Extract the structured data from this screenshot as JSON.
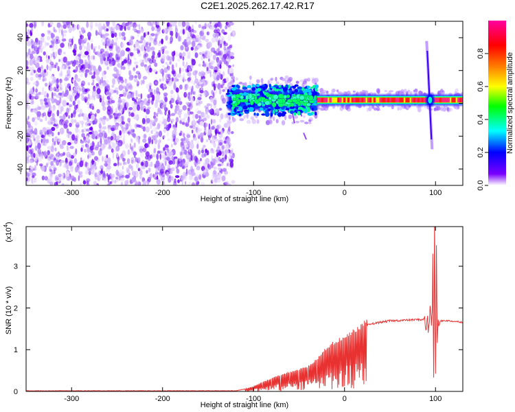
{
  "title": "C2E1.2025.262.17.42.R17",
  "chart_data": [
    {
      "type": "heatmap",
      "name": "spectrogram",
      "xlabel": "Height of straight line (km)",
      "ylabel": "Frequency (Hz)",
      "xlim": [
        -350,
        130
      ],
      "ylim": [
        -50,
        50
      ],
      "xticks": [
        -300,
        -200,
        -100,
        0,
        100
      ],
      "yticks": [
        -40,
        -20,
        0,
        20,
        40
      ],
      "colorbar": {
        "label": "Normalized spectral amplitude",
        "range": [
          0,
          1
        ],
        "ticks": [
          "0.0",
          "0.2",
          "0.4",
          "0.6",
          "0.8"
        ],
        "tick_values": [
          0,
          0.2,
          0.4,
          0.6,
          0.8
        ],
        "colormap": [
          "#ffffff",
          "#7a00ff",
          "#0000ff",
          "#00ffff",
          "#00ff00",
          "#ffff00",
          "#ff7f00",
          "#ff0000",
          "#ff00a0"
        ]
      },
      "regions": [
        {
          "label": "noise",
          "x_range": [
            -350,
            -128
          ],
          "f_range": [
            -50,
            50
          ],
          "amplitude": [
            0.0,
            0.18
          ]
        },
        {
          "label": "signal-turbulent",
          "x_range": [
            -128,
            -30
          ],
          "f_center": 2,
          "f_halfwidth": 6,
          "amplitude": [
            0.3,
            0.5
          ]
        },
        {
          "label": "signal-stable",
          "x_range": [
            -30,
            130
          ],
          "f_center": 2,
          "f_halfwidth": 2,
          "amplitude": 0.9
        },
        {
          "label": "spike",
          "x": 94,
          "f_range": [
            -28,
            38
          ],
          "amplitude": 0.25
        }
      ]
    },
    {
      "type": "line",
      "name": "snr",
      "xlabel": "Height of straight line (km)",
      "ylabel": "SNR (10 * v/v)",
      "yscale_label": "(x10",
      "yscale_exp": "4",
      "y_unit_scale": 10000,
      "xlim": [
        -350,
        130
      ],
      "ylim": [
        0,
        3.95
      ],
      "xticks": [
        -300,
        -200,
        -100,
        0,
        100
      ],
      "yticks": [
        0,
        1,
        2,
        3
      ],
      "series": [
        {
          "name": "SNR",
          "color": "#e83232",
          "x": [
            -350,
            -120,
            -110,
            -100,
            -90,
            -80,
            -70,
            -60,
            -50,
            -40,
            -30,
            -25,
            -20,
            -15,
            -10,
            -5,
            0,
            5,
            10,
            15,
            20,
            25,
            30,
            40,
            50,
            60,
            70,
            80,
            85,
            88,
            90,
            92,
            94,
            95,
            96,
            97,
            98,
            99,
            100,
            101,
            102,
            103,
            105,
            110,
            120,
            130
          ],
          "y": [
            0.01,
            0.01,
            0.05,
            0.12,
            0.22,
            0.3,
            0.38,
            0.45,
            0.5,
            0.58,
            0.75,
            0.85,
            1.0,
            1.08,
            1.12,
            1.2,
            1.25,
            1.32,
            1.38,
            1.45,
            1.52,
            1.58,
            1.62,
            1.66,
            1.69,
            1.7,
            1.71,
            1.72,
            1.72,
            1.73,
            1.72,
            1.4,
            1.9,
            2.1,
            1.5,
            2.9,
            0.6,
            3.95,
            0.25,
            3.3,
            1.2,
            1.5,
            1.68,
            1.7,
            1.68,
            1.66
          ]
        }
      ]
    }
  ]
}
